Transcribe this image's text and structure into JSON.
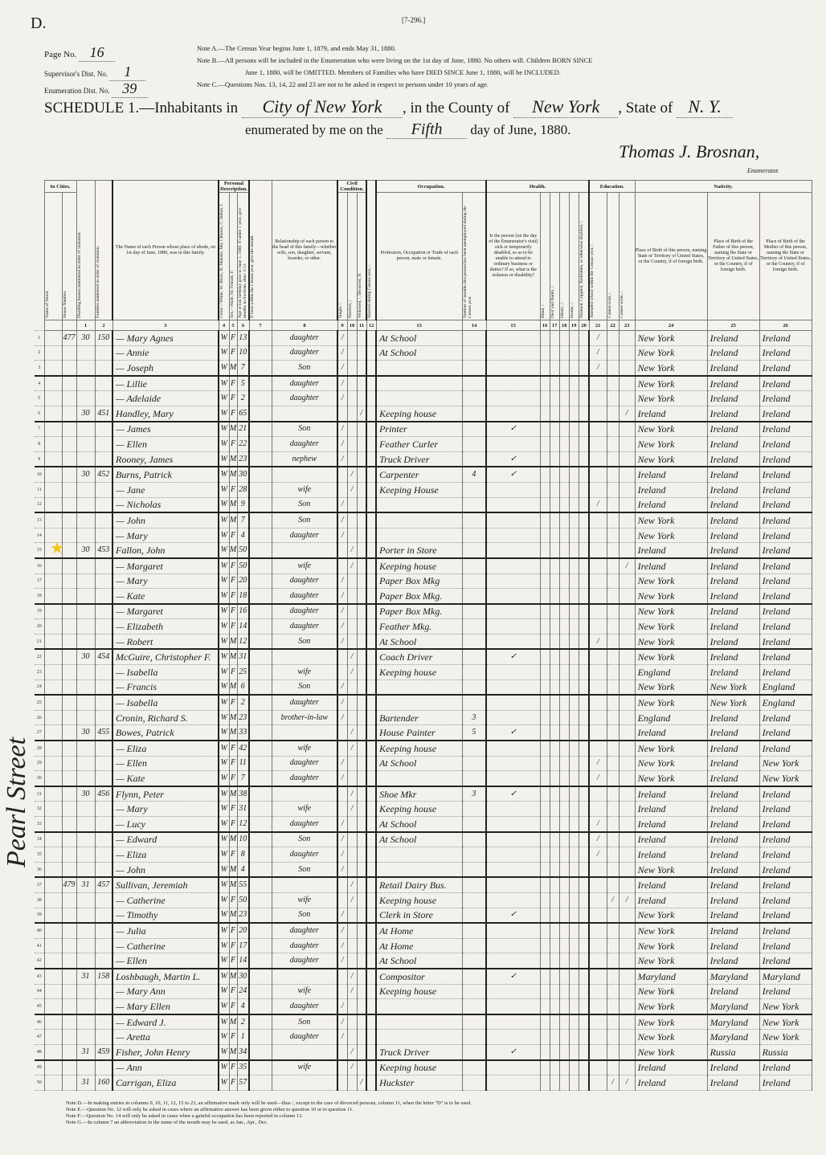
{
  "sheet_letter": "D.",
  "form_number": "[7-296.]",
  "page": {
    "page_no_label": "Page No.",
    "page_no": "16",
    "supervisor_label": "Supervisor's Dist. No.",
    "supervisor_no": "1",
    "enumeration_label": "Enumeration Dist. No.",
    "enumeration_no": "39"
  },
  "notes": [
    "Note A.—The Census Year begins June 1, 1879, and ends May 31, 1880.",
    "Note B.—All persons will be included in the Enumeration who were living on the 1st day of June, 1880. No others will. Children BORN SINCE",
    "June 1, 1880, will be OMITTED. Members of Families who have DIED SINCE June 1, 1880, will be INCLUDED.",
    "Note C.—Questions Nos. 13, 14, 22 and 23 are not to be asked in respect to persons under 10 years of age."
  ],
  "schedule": {
    "title": "SCHEDULE 1.—Inhabitants in",
    "city": "City of New York",
    "county_label": ", in the County of",
    "county": "New York",
    "state_label": ", State of",
    "state": "N. Y.",
    "enumerated_label": "enumerated by me on the",
    "day": "Fifth",
    "month_year": "day of June, 1880.",
    "enumerator": "Thomas J. Brosnan,",
    "enumerator_label": "Enumerator."
  },
  "street_margin": "Pearl Street",
  "star_icon": "star-icon",
  "star_color": "#f5c518",
  "headers": {
    "groups": {
      "in_cities": "In Cities.",
      "personal": "Personal Description.",
      "civil": "Civil Condition.",
      "occupation": "Occupation.",
      "health": "Health.",
      "education": "Education.",
      "nativity": "Nativity."
    },
    "street": "Name of Street.",
    "house": "House Number.",
    "c1": "Dwelling houses numbered in order of visitation.",
    "c2": "Families numbered in order of visitation.",
    "c3": "The Name of each Person whose place of abode, on 1st day of June, 1880, was in this family.",
    "c4": "Color.—White, W; Black, B; Mulatto, Mu; Chinese, C; Indian, I.",
    "c5": "Sex.—Male, M; Female, F.",
    "c6": "Age at last birthday prior to June 1, 1880. If under 1 year, give months in fractions, thus: 3/12.",
    "c7": "If born within the Census year, give the month.",
    "c8": "Relationship of each person to the head of this family—whether wife, son, daughter, servant, boarder, or other.",
    "c9": "Single, /.",
    "c10": "Married, /.",
    "c11": "Widowed, /. Divorced, D.",
    "c12": "Married during Census year, /.",
    "c13": "Profession, Occupation or Trade of each person, male or female.",
    "c14": "Number of months this person has been unemployed during the Census year.",
    "c15": "Is the person [on the day of the Enumerator's visit] sick or temporarily disabled, so as to be unable to attend to ordinary business or duties? If so, what is the sickness or disability?",
    "c16": "Blind, /.",
    "c17": "Deaf and Dumb, /.",
    "c18": "Idiotic, /.",
    "c19": "Insane, /.",
    "c20": "Maimed, Crippled, Bedridden, or otherwise disabled, /.",
    "c21": "Attended school within the Census year, /.",
    "c22": "Cannot read, /.",
    "c23": "Cannot write, /.",
    "c24": "Place of Birth of this person, naming State or Territory of United States, or the Country, if of foreign birth.",
    "c25": "Place of Birth of the Father of this person, naming the State or Territory of United States, or the Country, if of foreign birth.",
    "c26": "Place of Birth of the Mother of this person, naming the State or Territory of United States, or the Country, if of foreign birth.",
    "numbers": [
      "1",
      "2",
      "3",
      "4",
      "5",
      "6",
      "7",
      "8",
      "9",
      "10",
      "11",
      "12",
      "13",
      "14",
      "15",
      "16",
      "17",
      "18",
      "19",
      "20",
      "21",
      "22",
      "23",
      "24",
      "25",
      "26"
    ]
  },
  "rows": [
    {
      "house": "477",
      "dwelling": "30",
      "family": "150",
      "name": "— Mary Agnes",
      "color": "W",
      "sex": "F",
      "age": "13",
      "rel": "daughter",
      "single": "/",
      "occ": "At School",
      "school": "/",
      "bp": "New York",
      "fbp": "Ireland",
      "mbp": "Ireland"
    },
    {
      "name": "— Annie",
      "color": "W",
      "sex": "F",
      "age": "10",
      "rel": "daughter",
      "single": "/",
      "occ": "At School",
      "school": "/",
      "bp": "New York",
      "fbp": "Ireland",
      "mbp": "Ireland"
    },
    {
      "name": "— Joseph",
      "color": "W",
      "sex": "M",
      "age": "7",
      "rel": "Son",
      "single": "/",
      "school": "/",
      "bp": "New York",
      "fbp": "Ireland",
      "mbp": "Ireland"
    },
    {
      "name": "— Lillie",
      "color": "W",
      "sex": "F",
      "age": "5",
      "rel": "daughter",
      "single": "/",
      "bp": "New York",
      "fbp": "Ireland",
      "mbp": "Ireland"
    },
    {
      "name": "— Adelaide",
      "color": "W",
      "sex": "F",
      "age": "2",
      "rel": "daughter",
      "single": "/",
      "bp": "New York",
      "fbp": "Ireland",
      "mbp": "Ireland"
    },
    {
      "dwelling": "30",
      "family": "451",
      "name": "Handley, Mary",
      "color": "W",
      "sex": "F",
      "age": "65",
      "widowed": "/",
      "occ": "Keeping house",
      "write": "/",
      "bp": "Ireland",
      "fbp": "Ireland",
      "mbp": "Ireland"
    },
    {
      "name": "— James",
      "color": "W",
      "sex": "M",
      "age": "21",
      "rel": "Son",
      "single": "/",
      "occ": "Printer",
      "sick": "✓",
      "bp": "New York",
      "fbp": "Ireland",
      "mbp": "Ireland"
    },
    {
      "name": "— Ellen",
      "color": "W",
      "sex": "F",
      "age": "22",
      "rel": "daughter",
      "single": "/",
      "occ": "Feather Curler",
      "bp": "New York",
      "fbp": "Ireland",
      "mbp": "Ireland"
    },
    {
      "name": "Rooney, James",
      "color": "W",
      "sex": "M",
      "age": "23",
      "rel": "nephew",
      "single": "/",
      "occ": "Truck Driver",
      "sick": "✓",
      "bp": "New York",
      "fbp": "Ireland",
      "mbp": "Ireland"
    },
    {
      "dwelling": "30",
      "family": "452",
      "name": "Burns, Patrick",
      "color": "W",
      "sex": "M",
      "age": "30",
      "married": "/",
      "occ": "Carpenter",
      "months": "4",
      "sick": "✓",
      "bp": "Ireland",
      "fbp": "Ireland",
      "mbp": "Ireland"
    },
    {
      "name": "— Jane",
      "color": "W",
      "sex": "F",
      "age": "28",
      "rel": "wife",
      "married": "/",
      "occ": "Keeping House",
      "bp": "Ireland",
      "fbp": "Ireland",
      "mbp": "Ireland"
    },
    {
      "name": "— Nicholas",
      "color": "W",
      "sex": "M",
      "age": "9",
      "rel": "Son",
      "single": "/",
      "school": "/",
      "bp": "Ireland",
      "fbp": "Ireland",
      "mbp": "Ireland"
    },
    {
      "name": "— John",
      "color": "W",
      "sex": "M",
      "age": "7",
      "rel": "Son",
      "single": "/",
      "bp": "New York",
      "fbp": "Ireland",
      "mbp": "Ireland"
    },
    {
      "name": "— Mary",
      "color": "W",
      "sex": "F",
      "age": "4",
      "rel": "daughter",
      "single": "/",
      "bp": "New York",
      "fbp": "Ireland",
      "mbp": "Ireland"
    },
    {
      "dwelling": "30",
      "family": "453",
      "name": "Fallon, John",
      "color": "W",
      "sex": "M",
      "age": "50",
      "married": "/",
      "occ": "Porter in Store",
      "bp": "Ireland",
      "fbp": "Ireland",
      "mbp": "Ireland",
      "starred": true
    },
    {
      "name": "— Margaret",
      "color": "W",
      "sex": "F",
      "age": "50",
      "rel": "wife",
      "married": "/",
      "occ": "Keeping house",
      "write": "/",
      "bp": "Ireland",
      "fbp": "Ireland",
      "mbp": "Ireland"
    },
    {
      "name": "— Mary",
      "color": "W",
      "sex": "F",
      "age": "20",
      "rel": "daughter",
      "single": "/",
      "occ": "Paper Box Mkg",
      "bp": "New York",
      "fbp": "Ireland",
      "mbp": "Ireland"
    },
    {
      "name": "— Kate",
      "color": "W",
      "sex": "F",
      "age": "18",
      "rel": "daughter",
      "single": "/",
      "occ": "Paper Box Mkg.",
      "bp": "New York",
      "fbp": "Ireland",
      "mbp": "Ireland"
    },
    {
      "name": "— Margaret",
      "color": "W",
      "sex": "F",
      "age": "16",
      "rel": "daughter",
      "single": "/",
      "occ": "Paper Box Mkg.",
      "bp": "New York",
      "fbp": "Ireland",
      "mbp": "Ireland"
    },
    {
      "name": "— Elizabeth",
      "color": "W",
      "sex": "F",
      "age": "14",
      "rel": "daughter",
      "single": "/",
      "occ": "Feather Mkg.",
      "bp": "New York",
      "fbp": "Ireland",
      "mbp": "Ireland"
    },
    {
      "name": "— Robert",
      "color": "W",
      "sex": "M",
      "age": "12",
      "rel": "Son",
      "single": "/",
      "occ": "At School",
      "school": "/",
      "bp": "New York",
      "fbp": "Ireland",
      "mbp": "Ireland"
    },
    {
      "dwelling": "30",
      "family": "454",
      "name": "McGuire, Christopher F.",
      "color": "W",
      "sex": "M",
      "age": "31",
      "married": "/",
      "occ": "Coach Driver",
      "sick": "✓",
      "bp": "New York",
      "fbp": "Ireland",
      "mbp": "Ireland"
    },
    {
      "name": "— Isabella",
      "color": "W",
      "sex": "F",
      "age": "25",
      "rel": "wife",
      "married": "/",
      "occ": "Keeping house",
      "bp": "England",
      "fbp": "Ireland",
      "mbp": "Ireland"
    },
    {
      "name": "— Francis",
      "color": "W",
      "sex": "M",
      "age": "6",
      "rel": "Son",
      "single": "/",
      "bp": "New York",
      "fbp": "New York",
      "mbp": "England"
    },
    {
      "name": "— Isabella",
      "color": "W",
      "sex": "F",
      "age": "2",
      "rel": "daughter",
      "single": "/",
      "bp": "New York",
      "fbp": "New York",
      "mbp": "England"
    },
    {
      "name": "Cronin, Richard S.",
      "color": "W",
      "sex": "M",
      "age": "23",
      "rel": "brother-in-law",
      "single": "/",
      "occ": "Bartender",
      "months": "3",
      "bp": "England",
      "fbp": "Ireland",
      "mbp": "Ireland"
    },
    {
      "dwelling": "30",
      "family": "455",
      "name": "Bowes, Patrick",
      "color": "W",
      "sex": "M",
      "age": "33",
      "married": "/",
      "occ": "House Painter",
      "months": "5",
      "sick": "✓",
      "bp": "Ireland",
      "fbp": "Ireland",
      "mbp": "Ireland"
    },
    {
      "name": "— Eliza",
      "color": "W",
      "sex": "F",
      "age": "42",
      "rel": "wife",
      "married": "/",
      "occ": "Keeping house",
      "bp": "New York",
      "fbp": "Ireland",
      "mbp": "Ireland"
    },
    {
      "name": "— Ellen",
      "color": "W",
      "sex": "F",
      "age": "11",
      "rel": "daughter",
      "single": "/",
      "occ": "At School",
      "school": "/",
      "bp": "New York",
      "fbp": "Ireland",
      "mbp": "New York"
    },
    {
      "name": "— Kate",
      "color": "W",
      "sex": "F",
      "age": "7",
      "rel": "daughter",
      "single": "/",
      "school": "/",
      "bp": "New York",
      "fbp": "Ireland",
      "mbp": "New York"
    },
    {
      "dwelling": "30",
      "family": "456",
      "name": "Flynn, Peter",
      "color": "W",
      "sex": "M",
      "age": "38",
      "married": "/",
      "occ": "Shoe Mkr",
      "months": "3",
      "sick": "✓",
      "bp": "Ireland",
      "fbp": "Ireland",
      "mbp": "Ireland"
    },
    {
      "name": "— Mary",
      "color": "W",
      "sex": "F",
      "age": "31",
      "rel": "wife",
      "married": "/",
      "occ": "Keeping house",
      "bp": "Ireland",
      "fbp": "Ireland",
      "mbp": "Ireland"
    },
    {
      "name": "— Lucy",
      "color": "W",
      "sex": "F",
      "age": "12",
      "rel": "daughter",
      "single": "/",
      "occ": "At School",
      "school": "/",
      "bp": "Ireland",
      "fbp": "Ireland",
      "mbp": "Ireland"
    },
    {
      "name": "— Edward",
      "color": "W",
      "sex": "M",
      "age": "10",
      "rel": "Son",
      "single": "/",
      "occ": "At School",
      "school": "/",
      "bp": "Ireland",
      "fbp": "Ireland",
      "mbp": "Ireland"
    },
    {
      "name": "— Eliza",
      "color": "W",
      "sex": "F",
      "age": "8",
      "rel": "daughter",
      "single": "/",
      "school": "/",
      "bp": "Ireland",
      "fbp": "Ireland",
      "mbp": "Ireland"
    },
    {
      "name": "— John",
      "color": "W",
      "sex": "M",
      "age": "4",
      "rel": "Son",
      "single": "/",
      "bp": "New York",
      "fbp": "Ireland",
      "mbp": "Ireland"
    },
    {
      "house": "479",
      "dwelling": "31",
      "family": "457",
      "name": "Sullivan, Jeremiah",
      "color": "W",
      "sex": "M",
      "age": "55",
      "married": "/",
      "occ": "Retail Dairy Bus.",
      "bp": "Ireland",
      "fbp": "Ireland",
      "mbp": "Ireland"
    },
    {
      "name": "— Catherine",
      "color": "W",
      "sex": "F",
      "age": "50",
      "rel": "wife",
      "married": "/",
      "occ": "Keeping house",
      "read": "/",
      "write": "/",
      "bp": "Ireland",
      "fbp": "Ireland",
      "mbp": "Ireland"
    },
    {
      "name": "— Timothy",
      "color": "W",
      "sex": "M",
      "age": "23",
      "rel": "Son",
      "single": "/",
      "occ": "Clerk in Store",
      "sick": "✓",
      "bp": "New York",
      "fbp": "Ireland",
      "mbp": "Ireland"
    },
    {
      "name": "— Julia",
      "color": "W",
      "sex": "F",
      "age": "20",
      "rel": "daughter",
      "single": "/",
      "occ": "At Home",
      "bp": "New York",
      "fbp": "Ireland",
      "mbp": "Ireland"
    },
    {
      "name": "— Catherine",
      "color": "W",
      "sex": "F",
      "age": "17",
      "rel": "daughter",
      "single": "/",
      "occ": "At Home",
      "bp": "New York",
      "fbp": "Ireland",
      "mbp": "Ireland"
    },
    {
      "name": "— Ellen",
      "color": "W",
      "sex": "F",
      "age": "14",
      "rel": "daughter",
      "single": "/",
      "occ": "At School",
      "bp": "New York",
      "fbp": "Ireland",
      "mbp": "Ireland"
    },
    {
      "dwelling": "31",
      "family": "158",
      "name": "Loshbaugh, Martin L.",
      "color": "W",
      "sex": "M",
      "age": "30",
      "married": "/",
      "occ": "Compositor",
      "sick": "✓",
      "bp": "Maryland",
      "fbp": "Maryland",
      "mbp": "Maryland"
    },
    {
      "name": "— Mary Ann",
      "color": "W",
      "sex": "F",
      "age": "24",
      "rel": "wife",
      "married": "/",
      "occ": "Keeping house",
      "bp": "New York",
      "fbp": "Ireland",
      "mbp": "Ireland"
    },
    {
      "name": "— Mary Ellen",
      "color": "W",
      "sex": "F",
      "age": "4",
      "rel": "daughter",
      "single": "/",
      "bp": "New York",
      "fbp": "Maryland",
      "mbp": "New York"
    },
    {
      "name": "— Edward J.",
      "color": "W",
      "sex": "M",
      "age": "2",
      "rel": "Son",
      "single": "/",
      "bp": "New York",
      "fbp": "Maryland",
      "mbp": "New York"
    },
    {
      "name": "— Aretta",
      "color": "W",
      "sex": "F",
      "age": "1",
      "rel": "daughter",
      "single": "/",
      "bp": "New York",
      "fbp": "Maryland",
      "mbp": "New York"
    },
    {
      "dwelling": "31",
      "family": "459",
      "name": "Fisher, John Henry",
      "color": "W",
      "sex": "M",
      "age": "34",
      "married": "/",
      "occ": "Truck Driver",
      "sick": "✓",
      "bp": "New York",
      "fbp": "Russia",
      "mbp": "Russia"
    },
    {
      "name": "— Ann",
      "color": "W",
      "sex": "F",
      "age": "35",
      "rel": "wife",
      "married": "/",
      "occ": "Keeping house",
      "bp": "Ireland",
      "fbp": "Ireland",
      "mbp": "Ireland"
    },
    {
      "dwelling": "31",
      "family": "160",
      "name": "Carrigan, Eliza",
      "color": "W",
      "sex": "F",
      "age": "57",
      "widowed": "/",
      "occ": "Huckster",
      "read": "/",
      "write": "/",
      "bp": "Ireland",
      "fbp": "Ireland",
      "mbp": "Ireland"
    }
  ],
  "footnotes": [
    "Note D.—In making entries in columns 9, 10, 11, 12, 15 to 23, an affirmative mark only will be used—thus /, except in the case of divorced persons, column 11, when the letter \"D\" is to be used.",
    "Note E.—Question No. 12 will only be asked in cases where an affirmative answer has been given either to question 10 or to question 11.",
    "Note F.—Question No. 14 will only be asked in cases when a gainful occupation has been reported in column 13.",
    "Note G.—In column 7 an abbreviation in the name of the month may be used, as Jan., Apr., Dec."
  ]
}
